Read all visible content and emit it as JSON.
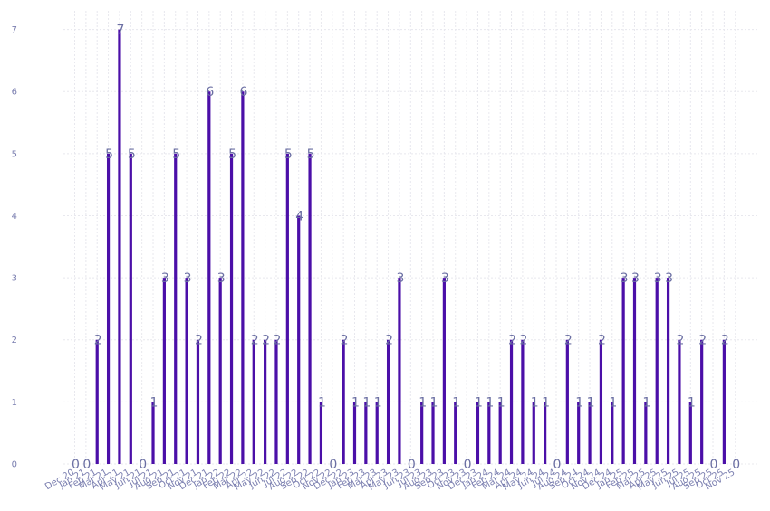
{
  "chart_data": {
    "type": "bar",
    "categories": [
      "Dec 20",
      "Jan 21",
      "Feb 21",
      "Mar 21",
      "Apr 21",
      "May 21",
      "Jun 21",
      "Jul 21",
      "Aug 21",
      "Sep 21",
      "Oct 21",
      "Nov 21",
      "Dec 21",
      "Jan 22",
      "Feb 22",
      "Mar 22",
      "Apr 22",
      "May 22",
      "Jun 22",
      "Jul 22",
      "Aug 22",
      "Sep 22",
      "Oct 22",
      "Nov 22",
      "Dec 22",
      "Jan 23",
      "Feb 23",
      "Mar 23",
      "Apr 23",
      "May 23",
      "Jun 23",
      "Jul 23",
      "Aug 23",
      "Sep 23",
      "Oct 23",
      "Nov 23",
      "Dec 23",
      "Jan 24",
      "Feb 24",
      "Mar 24",
      "Apr 24",
      "May 24",
      "Jun 24",
      "Jul 24",
      "Aug 24",
      "Sep 24",
      "Oct 24",
      "Nov 24",
      "Dec 24",
      "Jan 25",
      "Feb 25",
      "Mar 25",
      "Apr 25",
      "May 25",
      "Jun 25",
      "Jul 25",
      "Aug 25",
      "Sep 25",
      "Oct 25",
      "Nov 25"
    ],
    "values": [
      0,
      0,
      2,
      5,
      7,
      5,
      0,
      1,
      3,
      5,
      3,
      2,
      6,
      3,
      5,
      6,
      2,
      2,
      2,
      5,
      4,
      5,
      1,
      0,
      2,
      1,
      1,
      1,
      2,
      3,
      0,
      1,
      1,
      3,
      1,
      0,
      1,
      1,
      1,
      2,
      2,
      1,
      1,
      0,
      2,
      1,
      1,
      2,
      1,
      3,
      3,
      1,
      3,
      3,
      2,
      1,
      2,
      0,
      2,
      0
    ],
    "ylim": [
      0,
      7.3
    ],
    "yticks": [
      0,
      1,
      2,
      3,
      4,
      5,
      6,
      7
    ],
    "grid": true,
    "bar_color": "#4b0fa8",
    "label_color": "#6b6fa3",
    "axis_label_color": "#7b7fb0"
  }
}
